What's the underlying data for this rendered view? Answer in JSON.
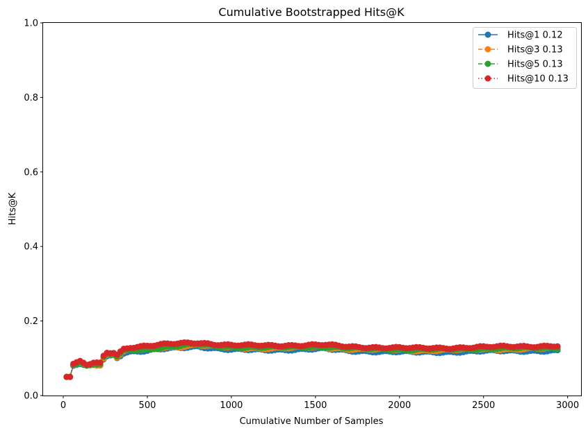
{
  "chart_data": {
    "type": "line",
    "title": "Cumulative Bootstrapped Hits@K",
    "xlabel": "Cumulative Number of Samples",
    "ylabel": "Hits@K",
    "xlim": [
      -120,
      3080
    ],
    "ylim": [
      0,
      1
    ],
    "xticks": [
      0,
      500,
      1000,
      1500,
      2000,
      2500,
      3000
    ],
    "yticks": [
      0.0,
      0.2,
      0.4,
      0.6,
      0.8,
      1.0
    ],
    "xtick_labels": [
      "0",
      "500",
      "1000",
      "1500",
      "2000",
      "2500",
      "3000"
    ],
    "ytick_labels": [
      "0.0",
      "0.2",
      "0.4",
      "0.6",
      "0.8",
      "1.0"
    ],
    "grid": false,
    "legend_position": "top-right",
    "legend": [
      "Hits@1 0.12",
      "Hits@3 0.13",
      "Hits@5 0.13",
      "Hits@10 0.13"
    ],
    "x_step": 20,
    "x_start": 20,
    "x_end": 2940,
    "series": [
      {
        "name": "Hits@1 0.12",
        "color": "#1f77b4",
        "linestyle": "solid",
        "marker": "circle",
        "anchors_x": [
          20,
          40,
          60,
          100,
          140,
          180,
          220,
          240,
          260,
          300,
          320,
          360,
          400,
          500,
          600,
          700,
          800,
          900,
          1000,
          1200,
          1400,
          1550,
          1700,
          1900,
          2100,
          2300,
          2500,
          2700,
          2940
        ],
        "anchors_y": [
          0.05,
          0.05,
          0.08,
          0.085,
          0.078,
          0.082,
          0.082,
          0.098,
          0.105,
          0.108,
          0.102,
          0.115,
          0.118,
          0.12,
          0.125,
          0.128,
          0.132,
          0.127,
          0.123,
          0.122,
          0.124,
          0.125,
          0.12,
          0.118,
          0.116,
          0.117,
          0.119,
          0.12,
          0.12
        ]
      },
      {
        "name": "Hits@3 0.13",
        "color": "#ff7f0e",
        "linestyle": "dashed",
        "marker": "circle",
        "anchors_x": [
          20,
          40,
          60,
          100,
          140,
          180,
          220,
          240,
          260,
          300,
          320,
          360,
          400,
          500,
          600,
          700,
          800,
          900,
          1000,
          1200,
          1400,
          1550,
          1700,
          1900,
          2100,
          2300,
          2500,
          2700,
          2940
        ],
        "anchors_y": [
          0.05,
          0.05,
          0.082,
          0.087,
          0.08,
          0.084,
          0.083,
          0.1,
          0.108,
          0.11,
          0.104,
          0.118,
          0.122,
          0.124,
          0.129,
          0.132,
          0.136,
          0.131,
          0.128,
          0.127,
          0.128,
          0.129,
          0.125,
          0.123,
          0.121,
          0.122,
          0.124,
          0.125,
          0.126
        ]
      },
      {
        "name": "Hits@5 0.13",
        "color": "#2ca02c",
        "linestyle": "dashed",
        "marker": "circle",
        "anchors_x": [
          20,
          40,
          60,
          100,
          140,
          180,
          220,
          240,
          260,
          300,
          320,
          360,
          400,
          500,
          600,
          700,
          800,
          900,
          1000,
          1200,
          1400,
          1550,
          1700,
          1900,
          2100,
          2300,
          2500,
          2700,
          2940
        ],
        "anchors_y": [
          0.05,
          0.05,
          0.083,
          0.088,
          0.08,
          0.085,
          0.083,
          0.101,
          0.109,
          0.111,
          0.105,
          0.119,
          0.123,
          0.125,
          0.13,
          0.134,
          0.137,
          0.133,
          0.13,
          0.129,
          0.13,
          0.131,
          0.127,
          0.125,
          0.123,
          0.124,
          0.126,
          0.127,
          0.128
        ]
      },
      {
        "name": "Hits@10 0.13",
        "color": "#d62728",
        "linestyle": "dotted",
        "marker": "circle",
        "anchors_x": [
          20,
          40,
          60,
          100,
          140,
          180,
          220,
          240,
          260,
          300,
          320,
          360,
          400,
          500,
          600,
          700,
          800,
          900,
          1000,
          1200,
          1400,
          1550,
          1700,
          1900,
          2100,
          2300,
          2500,
          2700,
          2940
        ],
        "anchors_y": [
          0.05,
          0.05,
          0.085,
          0.09,
          0.082,
          0.088,
          0.086,
          0.105,
          0.115,
          0.116,
          0.11,
          0.125,
          0.13,
          0.133,
          0.137,
          0.14,
          0.142,
          0.138,
          0.135,
          0.134,
          0.135,
          0.136,
          0.131,
          0.129,
          0.127,
          0.128,
          0.13,
          0.132,
          0.133
        ]
      }
    ]
  }
}
